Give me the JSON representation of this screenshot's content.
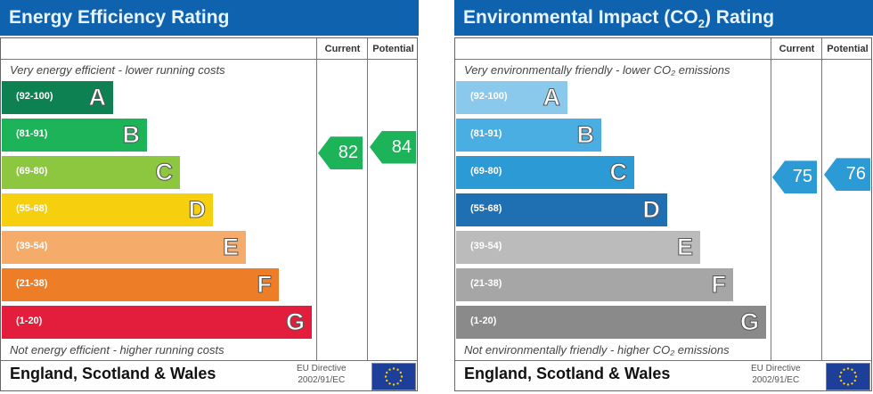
{
  "chart_data": [
    {
      "type": "bar",
      "title": "Energy Efficiency Rating",
      "columns": [
        "Current",
        "Potential"
      ],
      "top_note": "Very energy efficient - lower running costs",
      "bottom_note": "Not energy efficient - higher running costs",
      "bands": [
        {
          "range": "(92-100)",
          "letter": "A",
          "color": "#0e8152"
        },
        {
          "range": "(81-91)",
          "letter": "B",
          "color": "#1cb359"
        },
        {
          "range": "(69-80)",
          "letter": "C",
          "color": "#8dc63f"
        },
        {
          "range": "(55-68)",
          "letter": "D",
          "color": "#f6cf0f"
        },
        {
          "range": "(39-54)",
          "letter": "E",
          "color": "#f5ab6a"
        },
        {
          "range": "(21-38)",
          "letter": "F",
          "color": "#ed7d26"
        },
        {
          "range": "(1-20)",
          "letter": "G",
          "color": "#e31d3c"
        }
      ],
      "current": 82,
      "potential": 84,
      "current_color": "#1cb359",
      "potential_color": "#1cb359",
      "footer": "England, Scotland & Wales",
      "directive": [
        "EU Directive",
        "2002/91/EC"
      ]
    },
    {
      "type": "bar",
      "title": "Environmental Impact (CO",
      "title_sub": "2",
      "title_end": ") Rating",
      "columns": [
        "Current",
        "Potential"
      ],
      "top_note": "Very environmentally friendly - lower CO₂ emissions",
      "bottom_note": "Not environmentally friendly - higher CO₂ emissions",
      "bands": [
        {
          "range": "(92-100)",
          "letter": "A",
          "color": "#8bc9ec"
        },
        {
          "range": "(81-91)",
          "letter": "B",
          "color": "#4aaee2"
        },
        {
          "range": "(69-80)",
          "letter": "C",
          "color": "#2b9ad5"
        },
        {
          "range": "(55-68)",
          "letter": "D",
          "color": "#1f6fb3"
        },
        {
          "range": "(39-54)",
          "letter": "E",
          "color": "#bbbbbb"
        },
        {
          "range": "(21-38)",
          "letter": "F",
          "color": "#a6a6a6"
        },
        {
          "range": "(1-20)",
          "letter": "G",
          "color": "#8a8a8a"
        }
      ],
      "current": 75,
      "potential": 76,
      "current_color": "#2b9ad5",
      "potential_color": "#2b9ad5",
      "footer": "England, Scotland & Wales",
      "directive": [
        "EU Directive",
        "2002/91/EC"
      ]
    }
  ]
}
